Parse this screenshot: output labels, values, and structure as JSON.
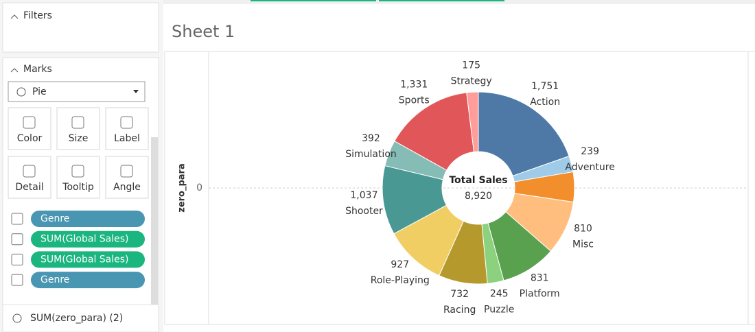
{
  "ui": {
    "filters_title": "Filters",
    "marks_title": "Marks",
    "mark_type": "Pie",
    "mark_buttons": [
      "Color",
      "Size",
      "Label",
      "Detail",
      "Tooltip",
      "Angle"
    ],
    "pills": [
      "Genre",
      "SUM(Global Sales)",
      "SUM(Global Sales)",
      "Genre"
    ],
    "bottom_item": "SUM(zero_para) (2)"
  },
  "chart_data": {
    "type": "pie",
    "title": "Sheet 1",
    "y_label": "zero_para",
    "yticks": [
      0
    ],
    "center_label": "Total Sales",
    "total": {
      "value": 8920,
      "label": "8,920"
    },
    "categories": [
      "Action",
      "Adventure",
      null,
      "Misc",
      "Platform",
      "Puzzle",
      "Racing",
      "Role-Playing",
      "Shooter",
      "Simulation",
      "Sports",
      "Strategy"
    ],
    "values": [
      1751,
      239,
      450,
      810,
      831,
      245,
      732,
      927,
      1037,
      392,
      1331,
      175
    ],
    "value_labels": [
      "1,751",
      "239",
      null,
      "810",
      "831",
      "245",
      "732",
      "927",
      "1,037",
      "392",
      "1,331",
      "175"
    ],
    "colors": [
      "#4e79a7",
      "#a0cbe8",
      "#f28e2b",
      "#ffbe7d",
      "#59a14f",
      "#8cd17d",
      "#b6992d",
      "#f1ce63",
      "#499894",
      "#86bcb6",
      "#e15759",
      "#ff9d9a"
    ]
  }
}
